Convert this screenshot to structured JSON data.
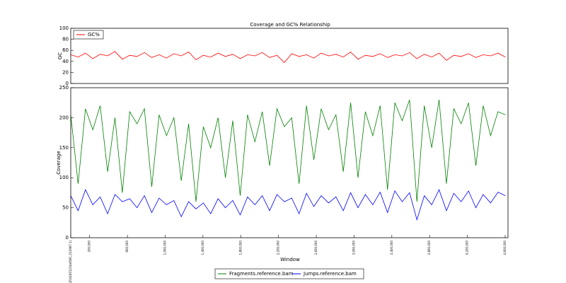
{
  "chart_data": [
    {
      "type": "line",
      "title": "Coverage and GC% Relationship",
      "ylabel": "GC",
      "x": [
        0,
        78000,
        156000,
        234000,
        312000,
        390000,
        468000,
        546000,
        624000,
        702000,
        780000,
        858000,
        936000,
        1014000,
        1092000,
        1170000,
        1248000,
        1326000,
        1404000,
        1482000,
        1560000,
        1638000,
        1716000,
        1794000,
        1872000,
        1950000,
        2028000,
        2106000,
        2184000,
        2262000,
        2340000,
        2418000,
        2496000,
        2574000,
        2652000,
        2730000,
        2808000,
        2886000,
        2964000,
        3042000,
        3120000,
        3198000,
        3276000,
        3354000,
        3432000,
        3510000,
        3588000,
        3666000,
        3744000,
        3822000,
        3900000,
        3978000,
        4056000,
        4134000,
        4212000,
        4290000,
        4368000,
        4446000,
        4524000,
        4602000
      ],
      "series": [
        {
          "name": "GC%",
          "color": "#ff0000",
          "values": [
            52,
            48,
            55,
            45,
            53,
            50,
            58,
            44,
            51,
            49,
            56,
            47,
            52,
            46,
            54,
            50,
            57,
            43,
            51,
            48,
            55,
            49,
            53,
            45,
            52,
            50,
            56,
            47,
            51,
            38,
            54,
            49,
            52,
            46,
            55,
            50,
            53,
            48,
            57,
            44,
            51,
            49,
            54,
            47,
            52,
            50,
            56,
            45,
            53,
            48,
            55,
            42,
            51,
            49,
            54,
            47,
            52,
            50,
            55,
            48
          ]
        }
      ],
      "xlim": [
        0,
        4630000
      ],
      "ylim": [
        0,
        100
      ],
      "yticks": [
        0,
        20,
        40,
        60,
        80,
        100
      ],
      "legend": "upper left"
    },
    {
      "type": "line",
      "xlabel": "Window",
      "ylabel": "Coverage",
      "x": [
        0,
        78000,
        156000,
        234000,
        312000,
        390000,
        468000,
        546000,
        624000,
        702000,
        780000,
        858000,
        936000,
        1014000,
        1092000,
        1170000,
        1248000,
        1326000,
        1404000,
        1482000,
        1560000,
        1638000,
        1716000,
        1794000,
        1872000,
        1950000,
        2028000,
        2106000,
        2184000,
        2262000,
        2340000,
        2418000,
        2496000,
        2574000,
        2652000,
        2730000,
        2808000,
        2886000,
        2964000,
        3042000,
        3120000,
        3198000,
        3276000,
        3354000,
        3432000,
        3510000,
        3588000,
        3666000,
        3744000,
        3822000,
        3900000,
        3978000,
        4056000,
        4134000,
        4212000,
        4290000,
        4368000,
        4446000,
        4524000,
        4602000
      ],
      "series": [
        {
          "name": "Fragments.reference.bam",
          "color": "#008000",
          "values": [
            205,
            90,
            215,
            180,
            220,
            110,
            200,
            75,
            210,
            190,
            215,
            85,
            205,
            170,
            200,
            95,
            190,
            60,
            185,
            150,
            200,
            100,
            195,
            70,
            205,
            160,
            210,
            120,
            215,
            185,
            200,
            90,
            220,
            130,
            215,
            180,
            205,
            110,
            225,
            100,
            210,
            170,
            220,
            80,
            225,
            195,
            230,
            60,
            220,
            150,
            230,
            90,
            215,
            190,
            225,
            120,
            220,
            170,
            210,
            205
          ]
        },
        {
          "name": "Jumps.reference.bam",
          "color": "#0000ff",
          "values": [
            70,
            45,
            80,
            55,
            68,
            40,
            72,
            60,
            65,
            50,
            70,
            42,
            66,
            55,
            62,
            35,
            60,
            48,
            58,
            40,
            65,
            50,
            62,
            38,
            68,
            55,
            70,
            45,
            72,
            60,
            66,
            40,
            74,
            52,
            70,
            58,
            68,
            45,
            75,
            50,
            72,
            55,
            76,
            42,
            78,
            60,
            75,
            30,
            70,
            55,
            80,
            45,
            74,
            60,
            78,
            50,
            72,
            58,
            76,
            70
          ]
        }
      ],
      "xlim": [
        0,
        4630000
      ],
      "ylim": [
        0,
        250
      ],
      "yticks": [
        0,
        50,
        100,
        150,
        200,
        250
      ],
      "xticks": [
        {
          "value": 0,
          "label": "gi|254160123|ref|NC_012967.1|"
        },
        {
          "value": 200000,
          "label": "200,000"
        },
        {
          "value": 600000,
          "label": "600,000"
        },
        {
          "value": 1000000,
          "label": "1,000,000"
        },
        {
          "value": 1400000,
          "label": "1,400,000"
        },
        {
          "value": 1800000,
          "label": "1,800,000"
        },
        {
          "value": 2200000,
          "label": "2,200,000"
        },
        {
          "value": 2600000,
          "label": "2,600,000"
        },
        {
          "value": 3000000,
          "label": "3,000,000"
        },
        {
          "value": 3400000,
          "label": "3,400,000"
        },
        {
          "value": 3800000,
          "label": "3,800,000"
        },
        {
          "value": 4200000,
          "label": "4,200,000"
        },
        {
          "value": 4600000,
          "label": "4,600,000"
        }
      ],
      "legend": "lower center"
    }
  ]
}
